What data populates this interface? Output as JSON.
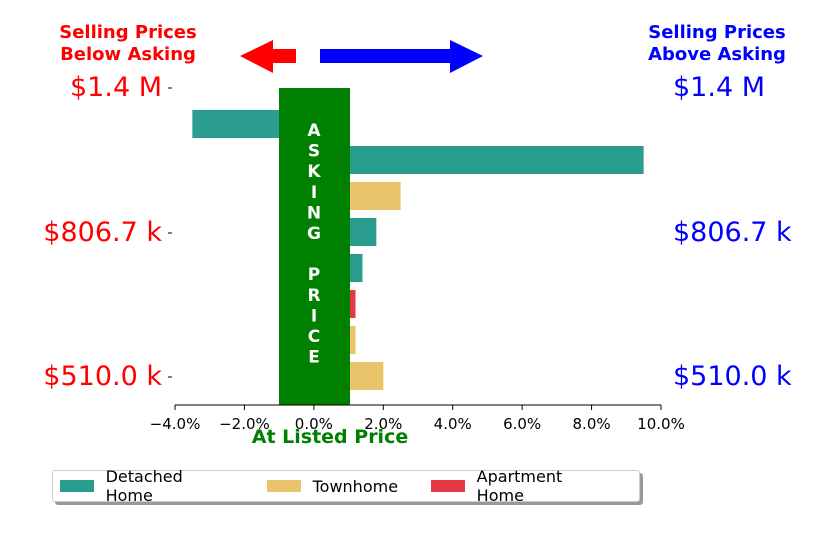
{
  "header": {
    "left_line1": "Selling Prices",
    "left_line2": "Below Asking",
    "right_line1": "Selling Prices",
    "right_line2": "Above Asking"
  },
  "price_labels": {
    "top": "$1.4 M",
    "mid": "$806.7 k",
    "bottom": "$510.0 k"
  },
  "center_band": {
    "label_line1": "ASKING",
    "label_line2": "PRICE",
    "bottom_label": "At Listed Price"
  },
  "colors": {
    "below": "#ff0000",
    "above": "#0000ff",
    "center": "#008000",
    "detached": "#2a9d8f",
    "townhome": "#e9c46a",
    "apartment": "#e63946"
  },
  "legend": [
    {
      "label": "Detached Home",
      "color": "#2a9d8f"
    },
    {
      "label": "Townhome",
      "color": "#e9c46a"
    },
    {
      "label": "Apartment Home",
      "color": "#e63946"
    }
  ],
  "chart_data": {
    "type": "bar",
    "orientation": "horizontal",
    "xlim": [
      -4.0,
      10.0
    ],
    "xticks": [
      "−4.0%",
      "−2.0%",
      "0.0%",
      "2.0%",
      "4.0%",
      "6.0%",
      "8.0%",
      "10.0%"
    ],
    "xtick_values": [
      -4,
      -2,
      0,
      2,
      4,
      6,
      8,
      10
    ],
    "grid": false,
    "legend_position": "bottom",
    "bars": [
      {
        "series": "Detached Home",
        "value": -3.5
      },
      {
        "series": "Detached Home",
        "value": 9.5
      },
      {
        "series": "Townhome",
        "value": 2.5
      },
      {
        "series": "Detached Home",
        "value": 1.8
      },
      {
        "series": "Detached Home",
        "value": 1.4
      },
      {
        "series": "Apartment Home",
        "value": 1.2
      },
      {
        "series": "Townhome",
        "value": 1.2
      },
      {
        "series": "Townhome",
        "value": 2.0
      }
    ]
  }
}
